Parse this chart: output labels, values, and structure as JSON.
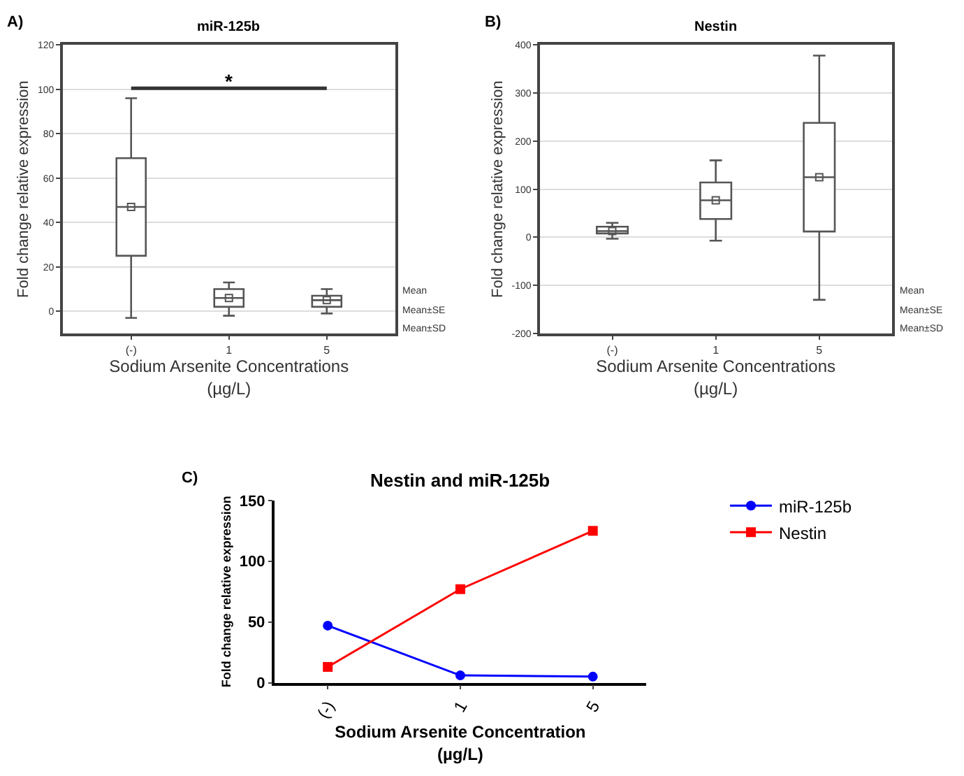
{
  "chart_data": [
    {
      "type": "box",
      "title": "miR-125b",
      "xlabel": "Sodium Arsenite Concentrations\n(µg/L)",
      "ylabel": "Fold change relative expression",
      "categories": [
        "(-)",
        "1",
        "5"
      ],
      "ylim": [
        -10,
        120
      ],
      "yticks": [
        0,
        20,
        40,
        60,
        80,
        100,
        120
      ],
      "grid": "y",
      "color": "#555555",
      "boxes": [
        {
          "low": -3,
          "q1": 25,
          "median": 47,
          "q3": 69,
          "high": 96,
          "mean": 47
        },
        {
          "low": -2,
          "q1": 2,
          "median": 6,
          "q3": 10,
          "high": 13,
          "mean": 6
        },
        {
          "low": -1,
          "q1": 2,
          "median": 5,
          "q3": 7,
          "high": 10,
          "mean": 5
        }
      ],
      "annotations": [
        "A)",
        "*",
        "Mean",
        "Mean±SE",
        "Mean±SD"
      ]
    },
    {
      "type": "box",
      "title": "Nestin",
      "xlabel": "Sodium Arsenite Concentrations\n(µg/L)",
      "ylabel": "Fold change relative expression",
      "categories": [
        "(-)",
        "1",
        "5"
      ],
      "ylim": [
        -200,
        400
      ],
      "yticks": [
        -200,
        -100,
        0,
        100,
        200,
        300,
        400
      ],
      "grid": "y",
      "color": "#555555",
      "boxes": [
        {
          "low": -3,
          "q1": 8,
          "median": 13,
          "q3": 22,
          "high": 30,
          "mean": 13
        },
        {
          "low": -7,
          "q1": 38,
          "median": 77,
          "q3": 114,
          "high": 160,
          "mean": 77
        },
        {
          "low": -130,
          "q1": 12,
          "median": 125,
          "q3": 238,
          "high": 378,
          "mean": 125
        }
      ],
      "annotations": [
        "B)",
        "Mean",
        "Mean±SE",
        "Mean±SD"
      ]
    },
    {
      "type": "line",
      "title": "Nestin and miR-125b",
      "xlabel": "Sodium Arsenite Concentration\n(µg/L)",
      "ylabel": "Fold change relative expression",
      "categories": [
        "(-)",
        "1",
        "5"
      ],
      "ylim": [
        0,
        150
      ],
      "yticks": [
        0,
        50,
        100,
        150
      ],
      "legend": "top right",
      "series": [
        {
          "name": "miR-125b",
          "color": "#0000ff",
          "marker": "circle",
          "values": [
            47,
            6,
            5
          ]
        },
        {
          "name": "Nestin",
          "color": "#ff0000",
          "marker": "square",
          "values": [
            13,
            77,
            125
          ]
        }
      ],
      "annotations": [
        "C)"
      ]
    }
  ]
}
